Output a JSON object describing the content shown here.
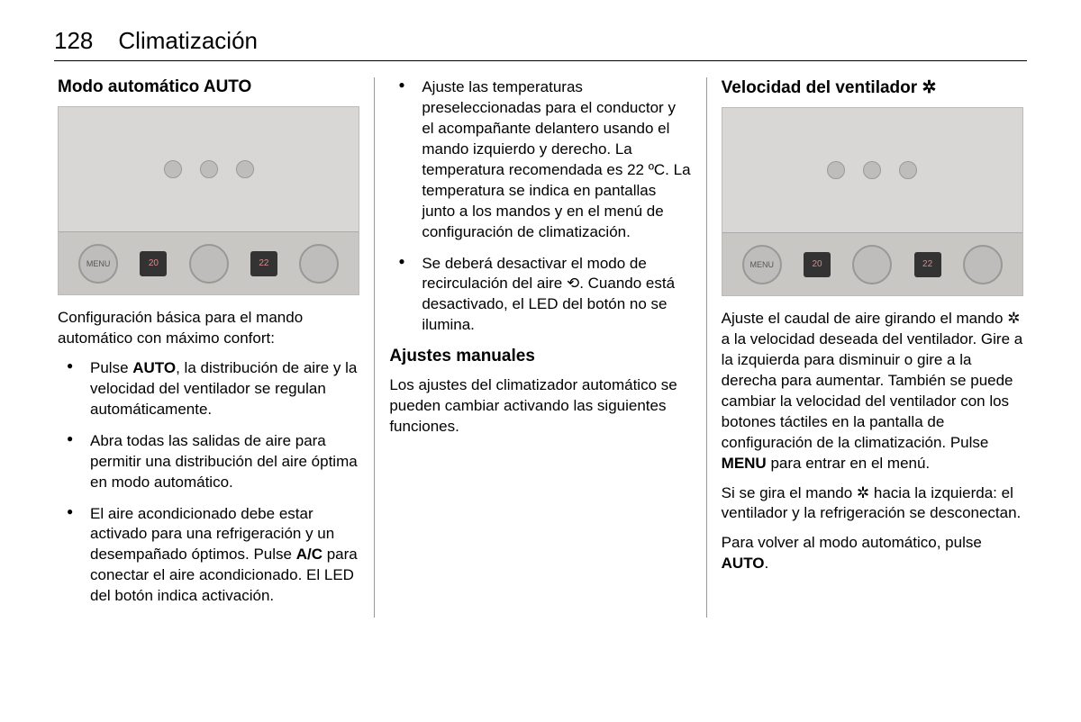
{
  "page": {
    "number": "128",
    "title": "Climatización"
  },
  "col1": {
    "heading": "Modo automático AUTO",
    "image": {
      "displays": [
        "20",
        "22"
      ],
      "dial_labels": [
        "MENU",
        "",
        ""
      ]
    },
    "intro": "Configuración básica para el mando automático con máximo confort:",
    "bullets": [
      {
        "pre": "Pulse ",
        "bold": "AUTO",
        "post": ", la distribución de aire y la velocidad del ventilador se regulan automáticamente."
      },
      {
        "pre": "Abra todas las salidas de aire para permitir una distribución del aire óptima en modo automático.",
        "bold": "",
        "post": ""
      },
      {
        "pre": "El aire acondicionado debe estar activado para una refrigeración y un desempañado óptimos. Pulse ",
        "bold": "A/C",
        "post": " para conectar el aire acondicionado. El LED del botón indica activación."
      }
    ]
  },
  "col2": {
    "bullets": [
      {
        "text": "Ajuste las temperaturas preseleccionadas para el conductor y el acompañante delantero usando el mando izquierdo y derecho. La temperatura recomendada es 22 ºC. La temperatura se indica en pantallas junto a los mandos y en el menú de configuración de climatización."
      },
      {
        "text": "Se deberá desactivar el modo de recirculación del aire ⟲. Cuando está desactivado, el LED del botón no se ilumina."
      }
    ],
    "heading": "Ajustes manuales",
    "body": "Los ajustes del climatizador automático se pueden cambiar activando las siguientes funciones."
  },
  "col3": {
    "heading_pre": "Velocidad del ventilador ",
    "heading_icon": "✲",
    "image": {
      "displays": [
        "20",
        "22"
      ],
      "dial_labels": [
        "MENU",
        "",
        ""
      ]
    },
    "p1_pre": "Ajuste el caudal de aire girando el mando ",
    "p1_icon": "✲",
    "p1_mid": " a la velocidad deseada del ventilador. Gire a la izquierda para disminuir o gire a la derecha para aumentar. También se puede cambiar la velocidad del ventilador con los botones táctiles en la pantalla de configuración de la climatización. Pulse ",
    "p1_bold": "MENU",
    "p1_post": " para entrar en el menú.",
    "p2_pre": "Si se gira el mando ",
    "p2_icon": "✲",
    "p2_post": " hacia la izquierda: el ventilador y la refrigeración se desconectan.",
    "p3_pre": "Para volver al modo automático, pulse ",
    "p3_bold": "AUTO",
    "p3_post": "."
  },
  "colors": {
    "text": "#000000",
    "divider": "#999999",
    "image_bg": "#d8d7d5"
  }
}
